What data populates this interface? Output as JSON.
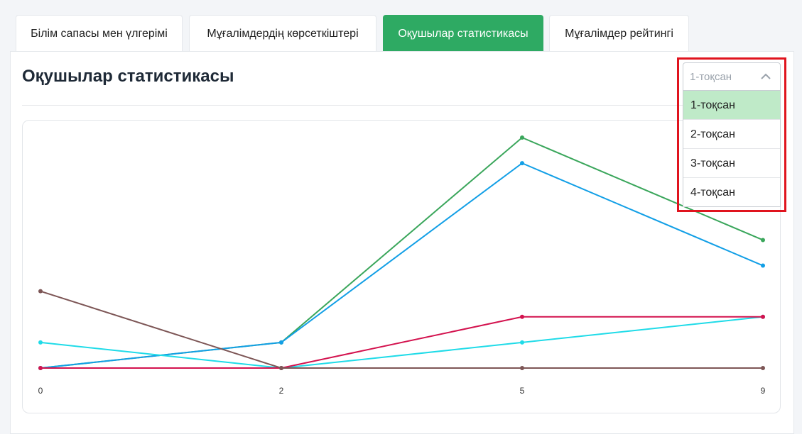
{
  "tabs": [
    {
      "label": "Білім сапасы мен үлгерімі"
    },
    {
      "label": "Мұғалімдердің көрсеткіштері"
    },
    {
      "label": "Оқушылар статистикасы"
    },
    {
      "label": "Мұғалімдер рейтингі"
    }
  ],
  "active_tab": 2,
  "page_title": "Оқушылар статистикасы",
  "dropdown": {
    "selected": "1-тоқсан",
    "options": [
      "1-тоқсан",
      "2-тоқсан",
      "3-тоқсан",
      "4-тоқсан"
    ],
    "highlighted_option": 0
  },
  "colors": {
    "accent": "#2eaa63",
    "highlight_border": "#e0141e",
    "selected_option_bg": "#bfeac8"
  },
  "chart_data": {
    "type": "line",
    "title": "",
    "xlabel": "",
    "ylabel": "",
    "categories": [
      "0",
      "2",
      "5",
      "9"
    ],
    "ylim": [
      0,
      9
    ],
    "grid": false,
    "series": [
      {
        "color": "#3aa65b",
        "values": [
          0,
          1,
          9,
          5
        ]
      },
      {
        "color": "#129fe6",
        "values": [
          0,
          1,
          8,
          4
        ]
      },
      {
        "color": "#1fdbe8",
        "values": [
          1,
          0,
          1,
          2
        ]
      },
      {
        "color": "#d3124e",
        "values": [
          0,
          0,
          2,
          2
        ]
      },
      {
        "color": "#7d5656",
        "values": [
          3,
          0,
          0,
          0
        ]
      }
    ]
  }
}
